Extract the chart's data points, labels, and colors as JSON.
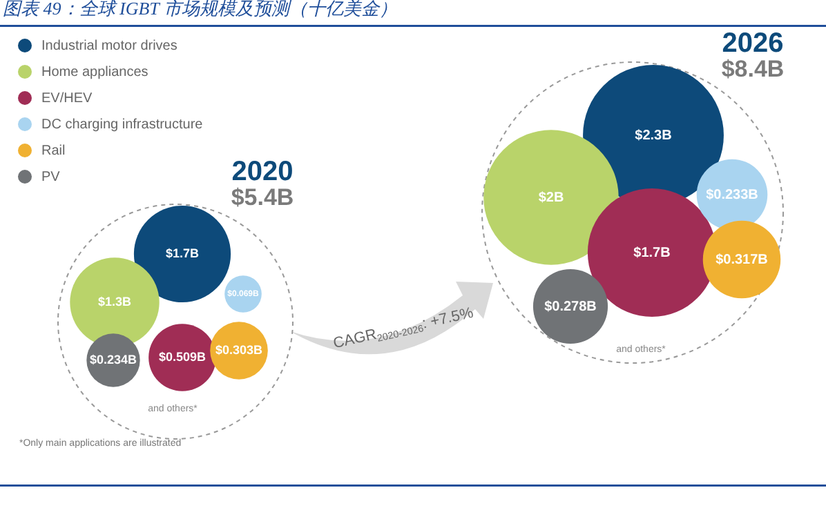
{
  "chart_data": {
    "type": "other",
    "title": "图表 49：全球 IGBT 市场规模及预测（十亿美金）",
    "categories": [
      "2020",
      "2026"
    ],
    "legend": "top left",
    "series": [
      {
        "name": "Industrial motor drives",
        "color": "#0d4a7a",
        "values": [
          1.7,
          2.3
        ],
        "value_labels": [
          "$1.7B",
          "$2.3B"
        ]
      },
      {
        "name": "Home appliances",
        "color": "#b9d36a",
        "values": [
          1.3,
          2
        ],
        "value_labels": [
          "$1.3B",
          "$2B"
        ]
      },
      {
        "name": "EV/HEV",
        "color": "#a02d55",
        "values": [
          0.509,
          1.7
        ],
        "value_labels": [
          "$0.509B",
          "$1.7B"
        ]
      },
      {
        "name": "DC charging infrastructure",
        "color": "#a9d4f0",
        "values": [
          0.069,
          0.233
        ],
        "value_labels": [
          "$0.069B",
          "$0.233B"
        ]
      },
      {
        "name": "Rail",
        "color": "#f0b132",
        "values": [
          0.303,
          0.317
        ],
        "value_labels": [
          "$0.303B",
          "$0.317B"
        ]
      },
      {
        "name": "PV",
        "color": "#707376",
        "values": [
          0.234,
          0.278
        ],
        "value_labels": [
          "$0.234B",
          "$0.278B"
        ]
      }
    ],
    "annotations": [
      "$5.4B",
      "$8.4B",
      "and others*",
      "and others*",
      "CAGR$_{2020-2026}$: +7.5%",
      "*Only main applications are illustrated"
    ]
  }
}
